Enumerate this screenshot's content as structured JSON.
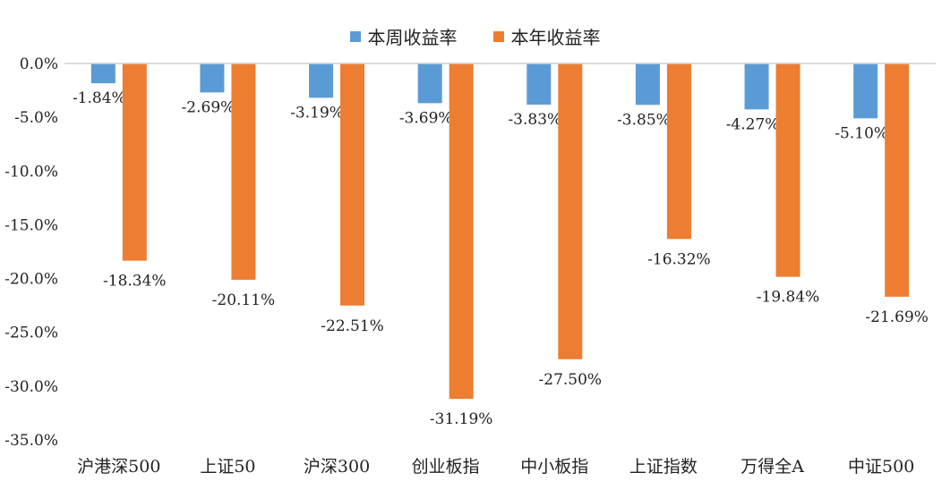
{
  "chart_data": {
    "type": "bar",
    "categories": [
      "沪港深500",
      "上证50",
      "沪深300",
      "创业板指",
      "中小板指",
      "上证指数",
      "万得全A",
      "中证500"
    ],
    "series": [
      {
        "name": "本周收益率",
        "color": "#5b9bd5",
        "values": [
          -1.84,
          -2.69,
          -3.19,
          -3.69,
          -3.83,
          -3.85,
          -4.27,
          -5.1
        ],
        "labels": [
          "-1.84%",
          "-2.69%",
          "-3.19%",
          "-3.69%",
          "-3.83%",
          "-3.85%",
          "-4.27%",
          "-5.10%"
        ]
      },
      {
        "name": "本年收益率",
        "color": "#ed7d31",
        "values": [
          -18.34,
          -20.11,
          -22.51,
          -31.19,
          -27.5,
          -16.32,
          -19.84,
          -21.69
        ],
        "labels": [
          "-18.34%",
          "-20.11%",
          "-22.51%",
          "-31.19%",
          "-27.50%",
          "-16.32%",
          "-19.84%",
          "-21.69%"
        ]
      }
    ],
    "ylim": [
      -35,
      0
    ],
    "yticks": [
      "0.0%",
      "-5.0%",
      "-10.0%",
      "-15.0%",
      "-20.0%",
      "-25.0%",
      "-30.0%",
      "-35.0%"
    ],
    "ytick_values": [
      0,
      -5,
      -10,
      -15,
      -20,
      -25,
      -30,
      -35
    ],
    "legend_position": "top-center",
    "grid": false
  }
}
